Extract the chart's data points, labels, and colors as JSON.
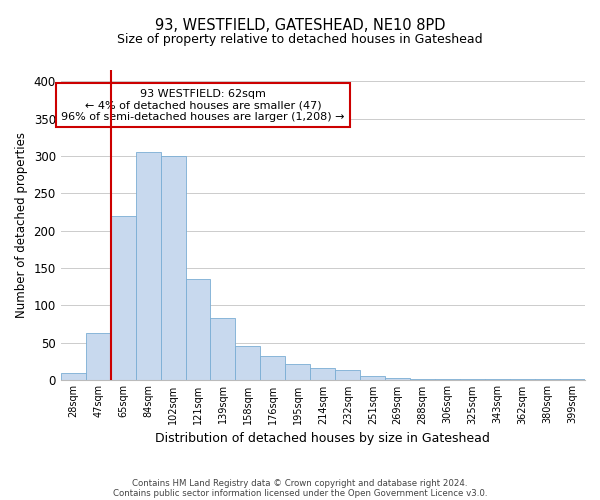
{
  "title": "93, WESTFIELD, GATESHEAD, NE10 8PD",
  "subtitle": "Size of property relative to detached houses in Gateshead",
  "xlabel": "Distribution of detached houses by size in Gateshead",
  "ylabel": "Number of detached properties",
  "bar_color": "#c8d9ee",
  "bar_edge_color": "#7aadd4",
  "bins": [
    "28sqm",
    "47sqm",
    "65sqm",
    "84sqm",
    "102sqm",
    "121sqm",
    "139sqm",
    "158sqm",
    "176sqm",
    "195sqm",
    "214sqm",
    "232sqm",
    "251sqm",
    "269sqm",
    "288sqm",
    "306sqm",
    "325sqm",
    "343sqm",
    "362sqm",
    "380sqm",
    "399sqm"
  ],
  "values": [
    10,
    63,
    220,
    305,
    300,
    135,
    83,
    46,
    32,
    22,
    16,
    13,
    5,
    3,
    2,
    2,
    1,
    1,
    1,
    1,
    1
  ],
  "red_line_index": 2,
  "annotation_line1": "93 WESTFIELD: 62sqm",
  "annotation_line2": "← 4% of detached houses are smaller (47)",
  "annotation_line3": "96% of semi-detached houses are larger (1,208) →",
  "annotation_box_color": "#ffffff",
  "annotation_box_edge": "#cc0000",
  "red_line_color": "#cc0000",
  "ylim": [
    0,
    415
  ],
  "yticks": [
    0,
    50,
    100,
    150,
    200,
    250,
    300,
    350,
    400
  ],
  "grid_color": "#cccccc",
  "bg_color": "#ffffff",
  "footer_line1": "Contains HM Land Registry data © Crown copyright and database right 2024.",
  "footer_line2": "Contains public sector information licensed under the Open Government Licence v3.0."
}
